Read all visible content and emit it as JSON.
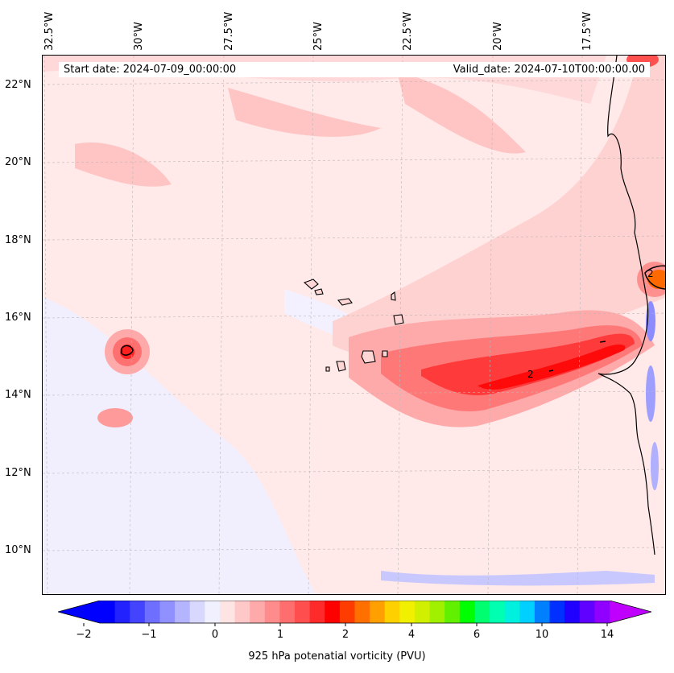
{
  "header": {
    "start_date": "Start date: 2024-07-09_00:00:00",
    "valid_date": "Valid_date: 2024-07-10T00:00:00.00"
  },
  "longitude_labels": [
    "32.5°W",
    "30°W",
    "27.5°W",
    "25°W",
    "22.5°W",
    "20°W",
    "17.5°W"
  ],
  "latitude_labels": [
    "22°N",
    "20°N",
    "18°N",
    "16°N",
    "14°N",
    "12°N",
    "10°N"
  ],
  "contour_label": "2",
  "colorbar": {
    "title": "925 hPa potenatial vorticity (PVU)",
    "tick_labels": [
      "−2",
      "−1",
      "0",
      "1",
      "2",
      "4",
      "6",
      "10",
      "14"
    ],
    "colors": [
      "#0000ff",
      "#2222ff",
      "#4444ff",
      "#6e6eff",
      "#9090ff",
      "#b4b4ff",
      "#d8d8ff",
      "#f0f0ff",
      "#ffe4e4",
      "#ffc8c8",
      "#ffaaaa",
      "#ff8c8c",
      "#ff6e6e",
      "#ff4e4e",
      "#ff2a2a",
      "#ff0000",
      "#ff3c00",
      "#ff7000",
      "#ffa000",
      "#ffd000",
      "#f0f000",
      "#d0f000",
      "#a0f000",
      "#60f000",
      "#00ff00",
      "#00ff70",
      "#00ffb0",
      "#00f0e0",
      "#00d0ff",
      "#0080ff",
      "#0030ff",
      "#2000ff",
      "#6000ff",
      "#9000ff"
    ],
    "over_color": "#c000ff"
  }
}
